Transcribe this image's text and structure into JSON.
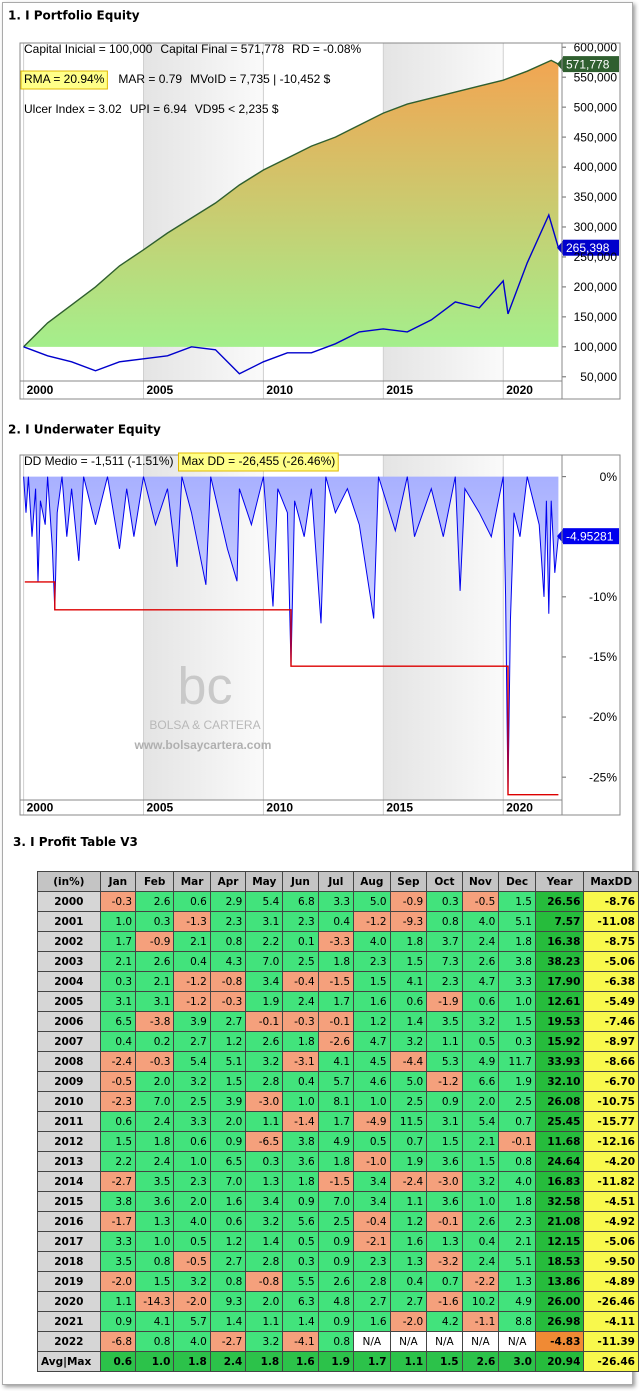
{
  "chart_data": [
    {
      "type": "line",
      "title": "1. I Portfolio Equity",
      "annotations": [
        [
          {
            "text": "Capital Inicial = 100,000"
          },
          {
            "text": "Capital Final = 571,778"
          },
          {
            "text": "RD = -0.08%"
          }
        ],
        [
          {
            "text": "RMA = 20.94%",
            "highlight": true
          },
          {
            "text": "MAR = 0.79"
          },
          {
            "text": "MVoID = 7,735 | -10,452 $"
          }
        ],
        [
          {
            "text": "Ulcer Index = 3.02"
          },
          {
            "text": "UPI = 6.94"
          },
          {
            "text": "VD95 < 2,235 $"
          }
        ]
      ],
      "xlim": [
        1999.85,
        2022.45
      ],
      "xticks": [
        2000,
        2005,
        2010,
        2015,
        2020
      ],
      "ylim": [
        43000,
        607000
      ],
      "yticks": [
        {
          "value": 50000,
          "label": "50,000"
        },
        {
          "value": 100000,
          "label": "100,000"
        },
        {
          "value": 150000,
          "label": "150,000"
        },
        {
          "value": 200000,
          "label": "200,000"
        },
        {
          "value": 250000,
          "label": "250,000"
        },
        {
          "value": 300000,
          "label": "300,000"
        },
        {
          "value": 350000,
          "label": "350,000"
        },
        {
          "value": 400000,
          "label": "400,000"
        },
        {
          "value": 450000,
          "label": "450,000"
        },
        {
          "value": 500000,
          "label": "500,000"
        },
        {
          "value": 550000,
          "label": "550,000"
        },
        {
          "value": 600000,
          "label": "600,000"
        }
      ],
      "series": [
        {
          "color": "#2f5f2f",
          "fill_colors": [
            "#f2a552",
            "#a4ef8c"
          ],
          "x": [
            2000,
            2001,
            2002,
            2003,
            2004,
            2005,
            2006,
            2007,
            2008,
            2009,
            2010,
            2011,
            2012,
            2013,
            2014,
            2015,
            2016,
            2017,
            2018,
            2019,
            2020,
            2021,
            2022,
            2022.3
          ],
          "values": [
            100000,
            140000,
            170000,
            200000,
            235000,
            262000,
            290000,
            315000,
            340000,
            370000,
            395000,
            415000,
            435000,
            450000,
            470000,
            490000,
            505000,
            515000,
            525000,
            535000,
            545000,
            560000,
            578000,
            571778
          ],
          "value_labels": [
            null,
            null,
            null,
            null,
            null,
            null,
            null,
            null,
            null,
            null,
            null,
            null,
            null,
            null,
            null,
            null,
            null,
            null,
            null,
            null,
            null,
            null,
            null,
            "571,778"
          ]
        },
        {
          "color": "#0000cc",
          "x": [
            2000,
            2001,
            2002,
            2003,
            2004,
            2005,
            2006,
            2007,
            2008,
            2009,
            2010,
            2011,
            2012,
            2013,
            2014,
            2015,
            2016,
            2017,
            2018,
            2019,
            2020,
            2020.2,
            2021,
            2021.9,
            2022.3
          ],
          "values": [
            100000,
            85000,
            75000,
            60000,
            75000,
            80000,
            85000,
            100000,
            95000,
            55000,
            75000,
            90000,
            90000,
            105000,
            125000,
            130000,
            125000,
            145000,
            175000,
            165000,
            210000,
            155000,
            240000,
            320000,
            265398
          ],
          "value_labels": [
            null,
            null,
            null,
            null,
            null,
            null,
            null,
            null,
            null,
            null,
            null,
            null,
            null,
            null,
            null,
            null,
            null,
            null,
            null,
            null,
            null,
            null,
            null,
            null,
            "265,398"
          ]
        }
      ]
    },
    {
      "type": "area",
      "title": "2. I Underwater Equity",
      "annotations": [
        [
          {
            "text": "DD Medio = -1,511 (-1.51%)"
          },
          {
            "text": "Max DD = -26,455 (-26.46%)",
            "highlight": true
          }
        ]
      ],
      "watermark": {
        "logo": "bc",
        "name": "BOLSA & CARTERA",
        "url": "www.bolsaycartera.com"
      },
      "xlim": [
        1999.85,
        2022.45
      ],
      "xticks": [
        2000,
        2005,
        2010,
        2015,
        2020
      ],
      "ylim": [
        -26.9,
        1.8
      ],
      "yticks": [
        {
          "value": 0,
          "label": "0%"
        },
        {
          "value": -10,
          "label": "-10%"
        },
        {
          "value": -15,
          "label": "-15%"
        },
        {
          "value": -20,
          "label": "-20%"
        },
        {
          "value": -25,
          "label": "-25%"
        }
      ],
      "series": [
        {
          "color": "#0000ee",
          "label_last": true,
          "x": [
            2000.0,
            2000.1,
            2000.2,
            2000.35,
            2000.5,
            2000.6,
            2000.7,
            2000.9,
            2001.0,
            2001.2,
            2001.3,
            2001.4,
            2001.6,
            2001.8,
            2002.0,
            2002.3,
            2002.5,
            2003.0,
            2003.5,
            2004.0,
            2004.3,
            2004.6,
            2005.0,
            2005.5,
            2006.0,
            2006.4,
            2006.6,
            2007.0,
            2007.6,
            2007.8,
            2008.5,
            2008.9,
            2009.0,
            2009.5,
            2010.0,
            2010.4,
            2010.6,
            2011.0,
            2011.15,
            2011.3,
            2011.7,
            2012.0,
            2012.4,
            2012.6,
            2013.0,
            2013.5,
            2014.0,
            2014.6,
            2014.8,
            2015.5,
            2016.0,
            2016.3,
            2017.0,
            2017.5,
            2018.0,
            2018.2,
            2018.4,
            2019.0,
            2019.5,
            2020.0,
            2020.1,
            2020.2,
            2020.3,
            2020.45,
            2020.7,
            2021.0,
            2021.5,
            2021.7,
            2021.8,
            2021.9,
            2022.0,
            2022.15,
            2022.3
          ],
          "values": [
            0,
            -3,
            0,
            -5,
            -1,
            -8.76,
            -2,
            -4,
            0,
            -6,
            -11.08,
            -3,
            0,
            -5,
            -1,
            -7,
            0,
            -4,
            0,
            -6,
            -1,
            -5,
            0,
            -4,
            -1,
            -7.5,
            0,
            -3,
            -9,
            0,
            -6,
            -8.7,
            -1,
            -4,
            0,
            -10.8,
            -1,
            -3,
            -15.77,
            -2,
            -5,
            -1,
            -12.2,
            0,
            -3,
            -1,
            -4,
            -11.8,
            0,
            -4.5,
            0,
            -5,
            -1,
            -5,
            0,
            -9.5,
            -1,
            -3,
            -5,
            0,
            -10,
            -26.46,
            -12,
            -3,
            -5,
            0,
            -4,
            -10,
            -2,
            -11.4,
            -2,
            -8,
            -4.95281
          ]
        },
        {
          "color": "#dd0000",
          "x": [
            2000.05,
            2001.3,
            2001.3,
            2011.15,
            2011.15,
            2020.2,
            2020.2,
            2022.3
          ],
          "values": [
            -8.76,
            -8.76,
            -11.08,
            -11.08,
            -15.77,
            -15.77,
            -26.46,
            -26.46
          ]
        }
      ]
    }
  ],
  "table": {
    "title": "3. I Profit Table V3",
    "header": [
      "(in%)",
      "Jan",
      "Feb",
      "Mar",
      "Apr",
      "May",
      "Jun",
      "Jul",
      "Aug",
      "Sep",
      "Oct",
      "Nov",
      "Dec",
      "Year",
      "MaxDD"
    ],
    "rows": [
      [
        "2000",
        "-0.3",
        "2.6",
        "0.6",
        "2.9",
        "5.4",
        "6.8",
        "3.3",
        "5.0",
        "-0.9",
        "0.3",
        "-0.5",
        "1.5",
        "26.56",
        "-8.76"
      ],
      [
        "2001",
        "1.0",
        "0.3",
        "-1.3",
        "2.3",
        "3.1",
        "2.3",
        "0.4",
        "-1.2",
        "-9.3",
        "0.8",
        "4.0",
        "5.1",
        "7.57",
        "-11.08"
      ],
      [
        "2002",
        "1.7",
        "-0.9",
        "2.1",
        "0.8",
        "2.2",
        "0.1",
        "-3.3",
        "4.0",
        "1.8",
        "3.7",
        "2.4",
        "1.8",
        "16.38",
        "-8.75"
      ],
      [
        "2003",
        "2.1",
        "2.6",
        "0.4",
        "4.3",
        "7.0",
        "2.5",
        "1.8",
        "2.3",
        "1.5",
        "7.3",
        "2.6",
        "3.8",
        "38.23",
        "-5.06"
      ],
      [
        "2004",
        "0.3",
        "2.1",
        "-1.2",
        "-0.8",
        "3.4",
        "-0.4",
        "-1.5",
        "1.5",
        "4.1",
        "2.3",
        "4.7",
        "3.3",
        "17.90",
        "-6.38"
      ],
      [
        "2005",
        "3.1",
        "3.1",
        "-1.2",
        "-0.3",
        "1.9",
        "2.4",
        "1.7",
        "1.6",
        "0.6",
        "-1.9",
        "0.6",
        "1.0",
        "12.61",
        "-5.49"
      ],
      [
        "2006",
        "6.5",
        "-3.8",
        "3.9",
        "2.7",
        "-0.1",
        "-0.3",
        "-0.1",
        "1.2",
        "1.4",
        "3.5",
        "3.2",
        "1.5",
        "19.53",
        "-7.46"
      ],
      [
        "2007",
        "0.4",
        "0.2",
        "2.7",
        "1.2",
        "2.6",
        "1.8",
        "-2.6",
        "4.7",
        "3.2",
        "1.1",
        "0.5",
        "0.3",
        "15.92",
        "-8.97"
      ],
      [
        "2008",
        "-2.4",
        "-0.3",
        "5.4",
        "5.1",
        "3.2",
        "-3.1",
        "4.1",
        "4.5",
        "-4.4",
        "5.3",
        "4.9",
        "11.7",
        "33.93",
        "-8.66"
      ],
      [
        "2009",
        "-0.5",
        "2.0",
        "3.2",
        "1.5",
        "2.8",
        "0.4",
        "5.7",
        "4.6",
        "5.0",
        "-1.2",
        "6.6",
        "1.9",
        "32.10",
        "-6.70"
      ],
      [
        "2010",
        "-2.3",
        "7.0",
        "2.5",
        "3.9",
        "-3.0",
        "1.0",
        "8.1",
        "1.0",
        "2.5",
        "0.9",
        "2.0",
        "2.5",
        "26.08",
        "-10.75"
      ],
      [
        "2011",
        "0.6",
        "2.4",
        "3.3",
        "2.0",
        "1.1",
        "-1.4",
        "1.7",
        "-4.9",
        "11.5",
        "3.1",
        "5.4",
        "0.7",
        "25.45",
        "-15.77"
      ],
      [
        "2012",
        "1.5",
        "1.8",
        "0.6",
        "0.9",
        "-6.5",
        "3.8",
        "4.9",
        "0.5",
        "0.7",
        "1.5",
        "2.1",
        "-0.1",
        "11.68",
        "-12.16"
      ],
      [
        "2013",
        "2.2",
        "2.4",
        "1.0",
        "6.5",
        "0.3",
        "3.6",
        "1.8",
        "-1.0",
        "1.9",
        "3.6",
        "1.5",
        "0.8",
        "24.64",
        "-4.20"
      ],
      [
        "2014",
        "-2.7",
        "3.5",
        "2.3",
        "7.0",
        "1.3",
        "1.8",
        "-1.5",
        "3.4",
        "-2.4",
        "-3.0",
        "3.2",
        "4.0",
        "16.83",
        "-11.82"
      ],
      [
        "2015",
        "3.8",
        "3.6",
        "2.0",
        "1.6",
        "3.4",
        "0.9",
        "7.0",
        "3.4",
        "1.1",
        "3.6",
        "1.0",
        "1.8",
        "32.58",
        "-4.51"
      ],
      [
        "2016",
        "-1.7",
        "1.3",
        "4.0",
        "0.6",
        "3.2",
        "5.6",
        "2.5",
        "-0.4",
        "1.2",
        "-0.1",
        "2.6",
        "2.3",
        "21.08",
        "-4.92"
      ],
      [
        "2017",
        "3.3",
        "1.0",
        "0.5",
        "1.2",
        "1.4",
        "0.5",
        "0.9",
        "-2.1",
        "1.6",
        "1.3",
        "0.4",
        "2.1",
        "12.15",
        "-5.06"
      ],
      [
        "2018",
        "3.5",
        "0.8",
        "-0.5",
        "2.7",
        "2.8",
        "0.3",
        "0.9",
        "2.3",
        "1.3",
        "-3.2",
        "2.4",
        "5.1",
        "18.53",
        "-9.50"
      ],
      [
        "2019",
        "-2.0",
        "1.5",
        "3.2",
        "0.8",
        "-0.8",
        "5.5",
        "2.6",
        "2.8",
        "0.4",
        "0.7",
        "-2.2",
        "1.3",
        "13.86",
        "-4.89"
      ],
      [
        "2020",
        "1.1",
        "-14.3",
        "-2.0",
        "9.3",
        "2.0",
        "6.3",
        "4.8",
        "2.7",
        "2.7",
        "-1.6",
        "10.2",
        "4.9",
        "26.00",
        "-26.46"
      ],
      [
        "2021",
        "0.9",
        "4.1",
        "5.7",
        "1.4",
        "1.1",
        "1.4",
        "0.9",
        "1.6",
        "-2.0",
        "4.2",
        "-1.1",
        "8.8",
        "26.98",
        "-4.11"
      ],
      [
        "2022",
        "-6.8",
        "0.8",
        "4.0",
        "-2.7",
        "3.2",
        "-4.1",
        "0.8",
        "N/A",
        "N/A",
        "N/A",
        "N/A",
        "N/A",
        "-4.83",
        "-11.39"
      ],
      [
        "Avg|Max",
        "0.6",
        "1.0",
        "1.8",
        "2.4",
        "1.8",
        "1.6",
        "1.9",
        "1.7",
        "1.1",
        "1.5",
        "2.6",
        "3.0",
        "20.94",
        "-26.46"
      ]
    ]
  }
}
